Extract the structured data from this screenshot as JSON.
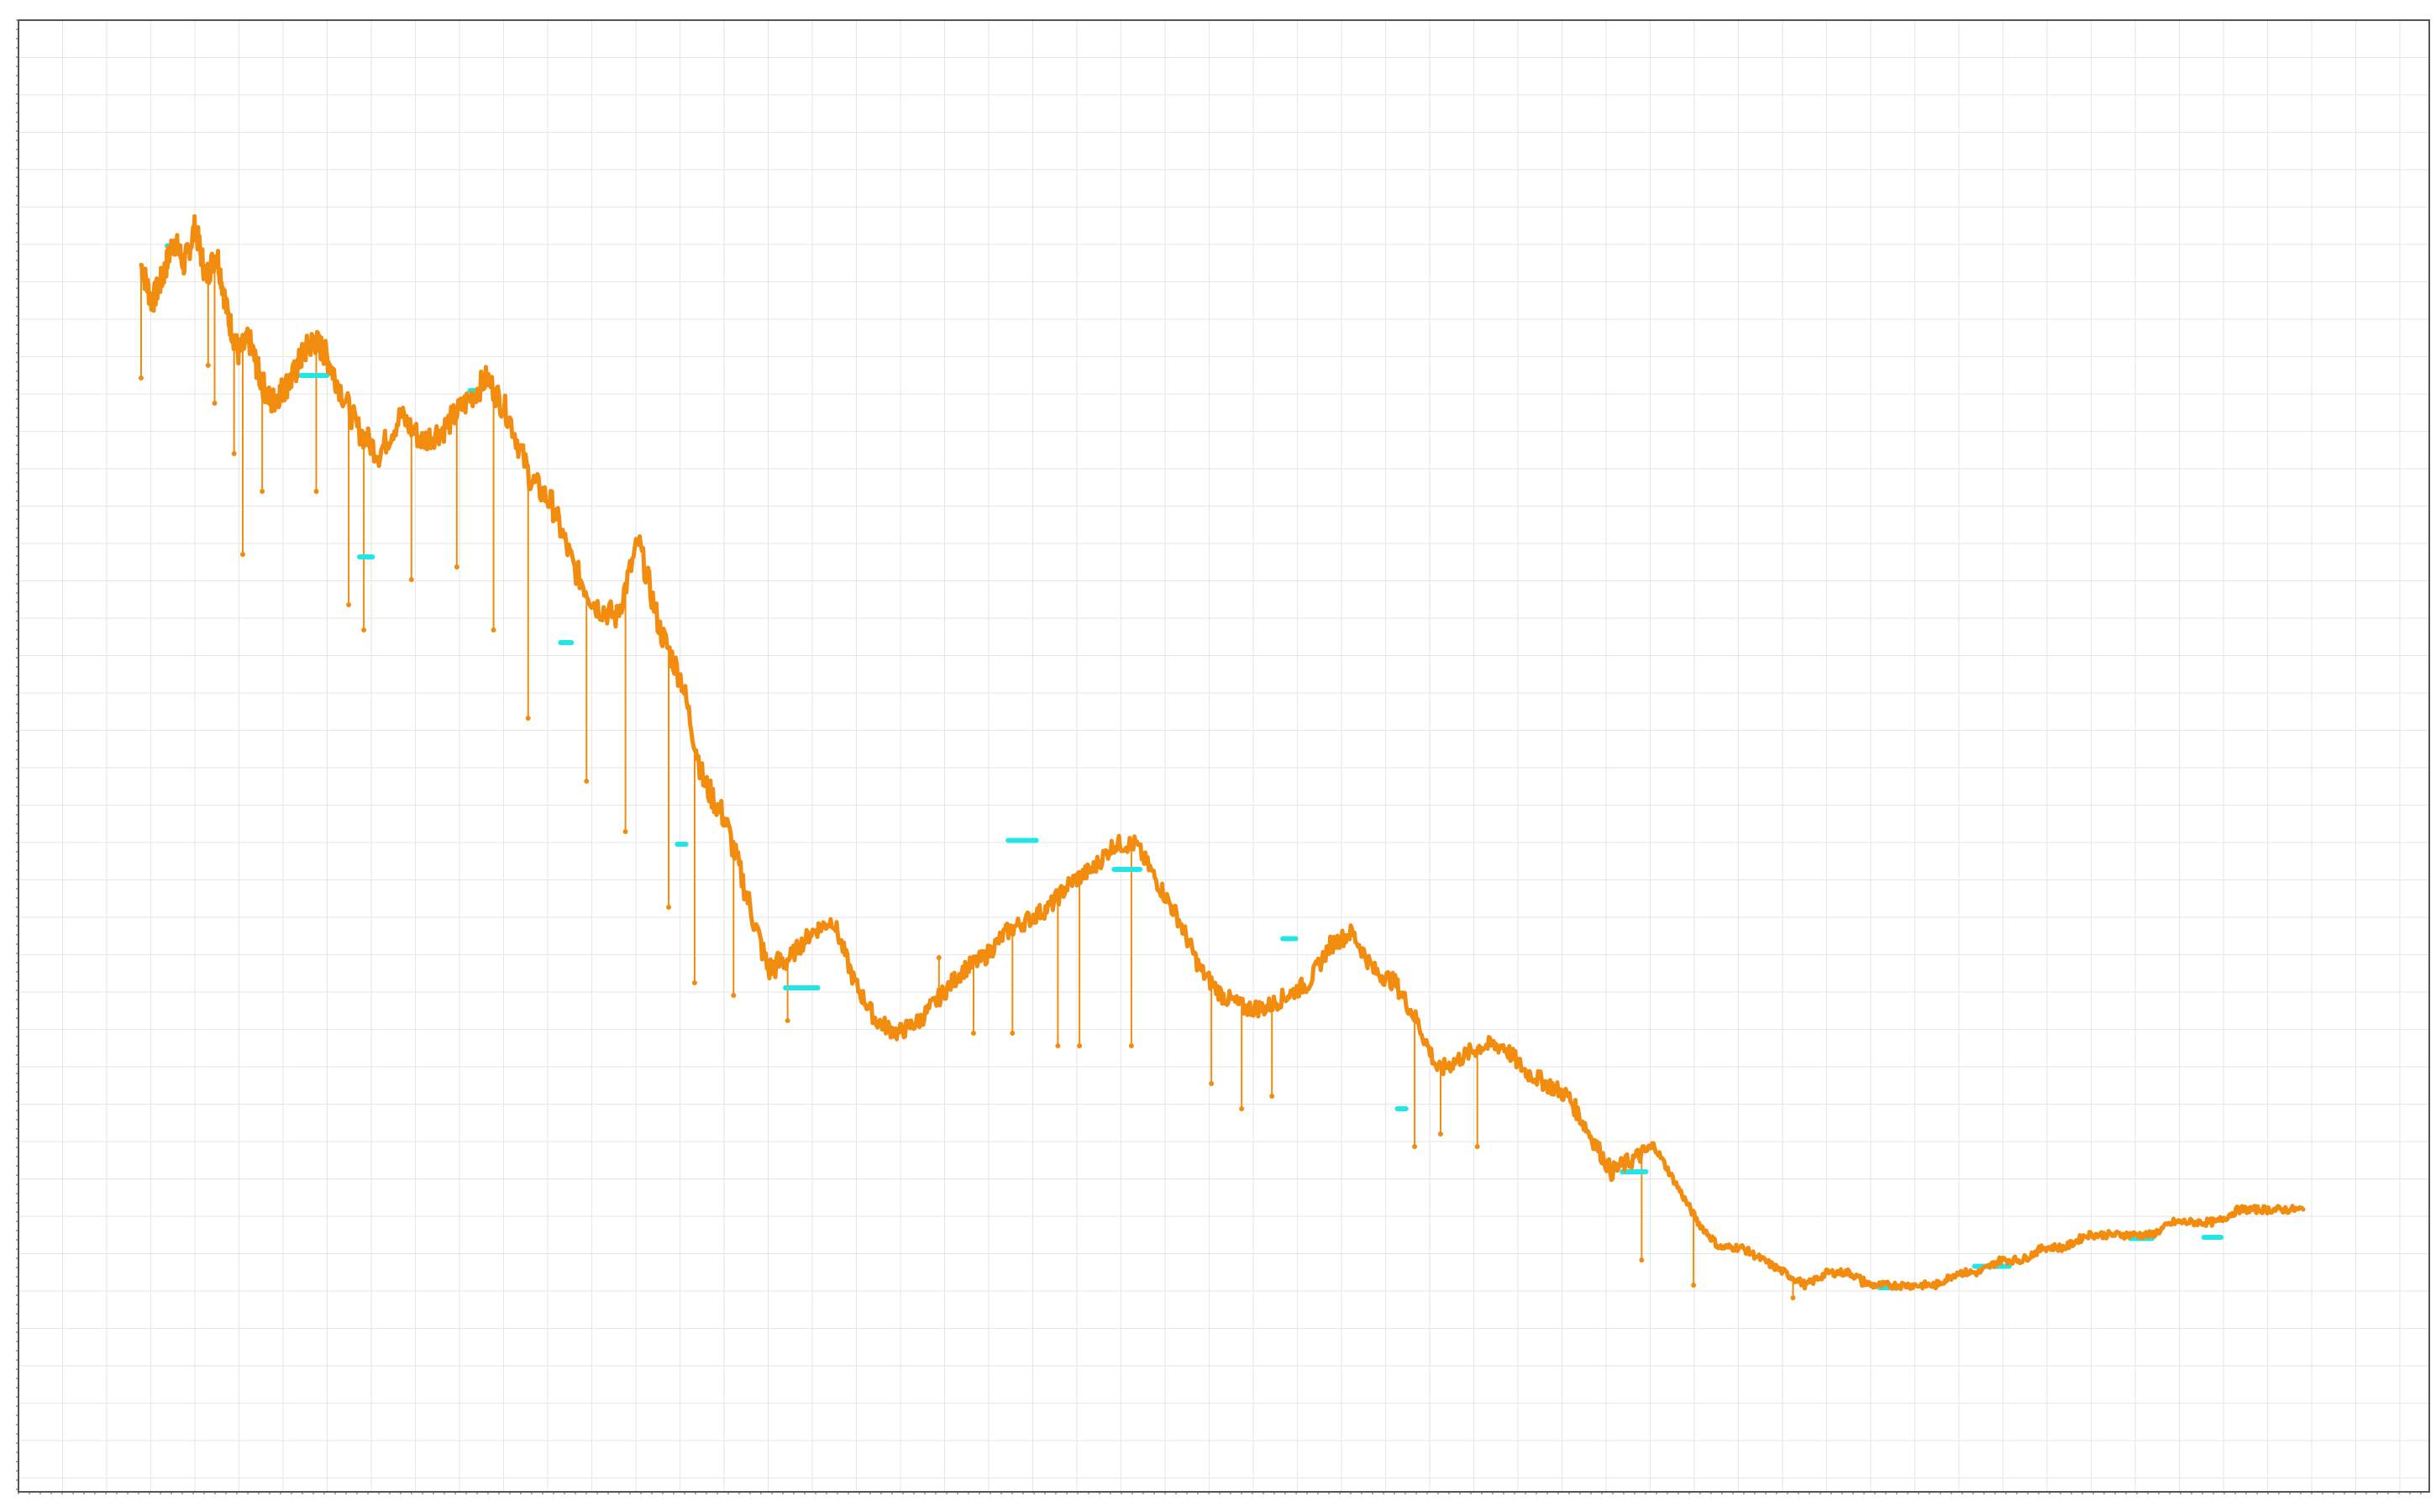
{
  "colors": {
    "background": "#ffffff",
    "grid": "#e6e6e6",
    "axis": "#555555",
    "series_main": "#f28c0f",
    "series_secondary": "#22e6e6"
  },
  "chart_data": {
    "type": "line",
    "title": "",
    "xlabel": "",
    "ylabel": "",
    "grid": true,
    "legend": "none",
    "xlim": [
      0,
      100
    ],
    "ylim": [
      0,
      100
    ],
    "series": [
      {
        "color": "#f28c0f",
        "style": "line-with-markers",
        "x": [
          0,
          0.5,
          1,
          1.5,
          2,
          2.5,
          3,
          3.5,
          4,
          4.5,
          5,
          5.5,
          6,
          6.5,
          7,
          7.5,
          8,
          8.5,
          9,
          10,
          11,
          12,
          13,
          14,
          15,
          16,
          17,
          18,
          19,
          20,
          21,
          22,
          23,
          24,
          25,
          26,
          27,
          28,
          29,
          30,
          31,
          32,
          33,
          34,
          35,
          36,
          37,
          38,
          39,
          40,
          41,
          42,
          43,
          44,
          45,
          46,
          47,
          48,
          49,
          50,
          51,
          52,
          53,
          54,
          55,
          56,
          57,
          58,
          59,
          60,
          61,
          62,
          63,
          64,
          65,
          66,
          67,
          68,
          69,
          70,
          71,
          72,
          73,
          74,
          75,
          76,
          77,
          78,
          79,
          80,
          81,
          82,
          83,
          84,
          85,
          86,
          87,
          88,
          89,
          90,
          91,
          92,
          93,
          94,
          95,
          96,
          97,
          98,
          99,
          100
        ],
        "y": [
          89,
          86,
          88,
          91,
          89,
          92,
          88,
          90,
          85,
          82,
          83,
          80,
          78,
          79,
          80,
          82,
          83,
          82,
          80,
          76,
          74,
          77,
          75,
          76,
          78,
          80,
          77,
          72,
          70,
          65,
          62,
          61,
          67,
          60,
          56,
          48,
          45,
          39,
          33,
          34,
          36,
          37,
          32,
          29,
          28,
          29,
          31,
          33,
          34,
          36,
          37,
          38,
          40,
          41,
          43,
          43,
          40,
          37,
          33,
          31,
          30,
          30,
          31,
          32,
          35,
          36,
          33,
          32,
          29,
          25,
          26,
          27,
          27,
          25,
          24,
          23,
          20,
          17,
          18,
          19,
          16,
          13,
          11,
          11,
          10,
          9,
          8,
          9,
          9,
          8,
          8,
          8,
          8,
          9,
          9,
          10,
          10,
          11,
          11,
          12,
          12,
          12,
          12,
          13,
          13,
          13,
          14,
          14,
          14,
          14
        ],
        "spikes": [
          {
            "x": 0.0,
            "y_low": 80
          },
          {
            "x": 3.1,
            "y_low": 81
          },
          {
            "x": 3.4,
            "y_low": 78
          },
          {
            "x": 4.3,
            "y_low": 74
          },
          {
            "x": 4.7,
            "y_low": 66
          },
          {
            "x": 5.6,
            "y_low": 71
          },
          {
            "x": 8.1,
            "y_low": 71
          },
          {
            "x": 9.6,
            "y_low": 62
          },
          {
            "x": 10.3,
            "y_low": 60
          },
          {
            "x": 12.5,
            "y_low": 64
          },
          {
            "x": 14.6,
            "y_low": 65
          },
          {
            "x": 16.3,
            "y_low": 60
          },
          {
            "x": 17.9,
            "y_low": 53
          },
          {
            "x": 20.6,
            "y_low": 48
          },
          {
            "x": 22.4,
            "y_low": 44
          },
          {
            "x": 24.4,
            "y_low": 38
          },
          {
            "x": 25.6,
            "y_low": 32
          },
          {
            "x": 27.4,
            "y_low": 31
          },
          {
            "x": 29.9,
            "y_low": 29
          },
          {
            "x": 36.9,
            "y_low": 34
          },
          {
            "x": 38.5,
            "y_low": 28
          },
          {
            "x": 40.3,
            "y_low": 28
          },
          {
            "x": 42.4,
            "y_low": 27
          },
          {
            "x": 43.4,
            "y_low": 27
          },
          {
            "x": 45.8,
            "y_low": 27
          },
          {
            "x": 49.5,
            "y_low": 24
          },
          {
            "x": 50.9,
            "y_low": 22
          },
          {
            "x": 52.3,
            "y_low": 23
          },
          {
            "x": 58.9,
            "y_low": 19
          },
          {
            "x": 60.1,
            "y_low": 20
          },
          {
            "x": 61.8,
            "y_low": 19
          },
          {
            "x": 69.4,
            "y_low": 10
          },
          {
            "x": 71.8,
            "y_low": 8
          },
          {
            "x": 76.4,
            "y_low": 7
          },
          {
            "x": 79.6,
            "y_low": 8
          },
          {
            "x": 83.1,
            "y_low": 8
          }
        ]
      },
      {
        "color": "#22e6e6",
        "style": "flat-segments",
        "segments": [
          {
            "x0": 1.2,
            "x1": 1.8,
            "y": 90.5
          },
          {
            "x0": 7.4,
            "x1": 8.6,
            "y": 80.2
          },
          {
            "x0": 10.1,
            "x1": 10.7,
            "y": 65.8
          },
          {
            "x0": 15.2,
            "x1": 15.7,
            "y": 79.0
          },
          {
            "x0": 19.4,
            "x1": 19.9,
            "y": 59.0
          },
          {
            "x0": 24.8,
            "x1": 25.2,
            "y": 43.0
          },
          {
            "x0": 29.8,
            "x1": 31.3,
            "y": 31.6
          },
          {
            "x0": 40.1,
            "x1": 41.4,
            "y": 43.3
          },
          {
            "x0": 45.0,
            "x1": 46.2,
            "y": 41.0
          },
          {
            "x0": 52.8,
            "x1": 53.4,
            "y": 35.5
          },
          {
            "x0": 58.1,
            "x1": 58.5,
            "y": 22.0
          },
          {
            "x0": 68.5,
            "x1": 69.6,
            "y": 17.0
          },
          {
            "x0": 80.4,
            "x1": 81.3,
            "y": 7.8
          },
          {
            "x0": 84.8,
            "x1": 86.4,
            "y": 9.5
          },
          {
            "x0": 92.0,
            "x1": 93.0,
            "y": 11.7
          },
          {
            "x0": 95.4,
            "x1": 96.2,
            "y": 11.8
          }
        ]
      }
    ]
  }
}
